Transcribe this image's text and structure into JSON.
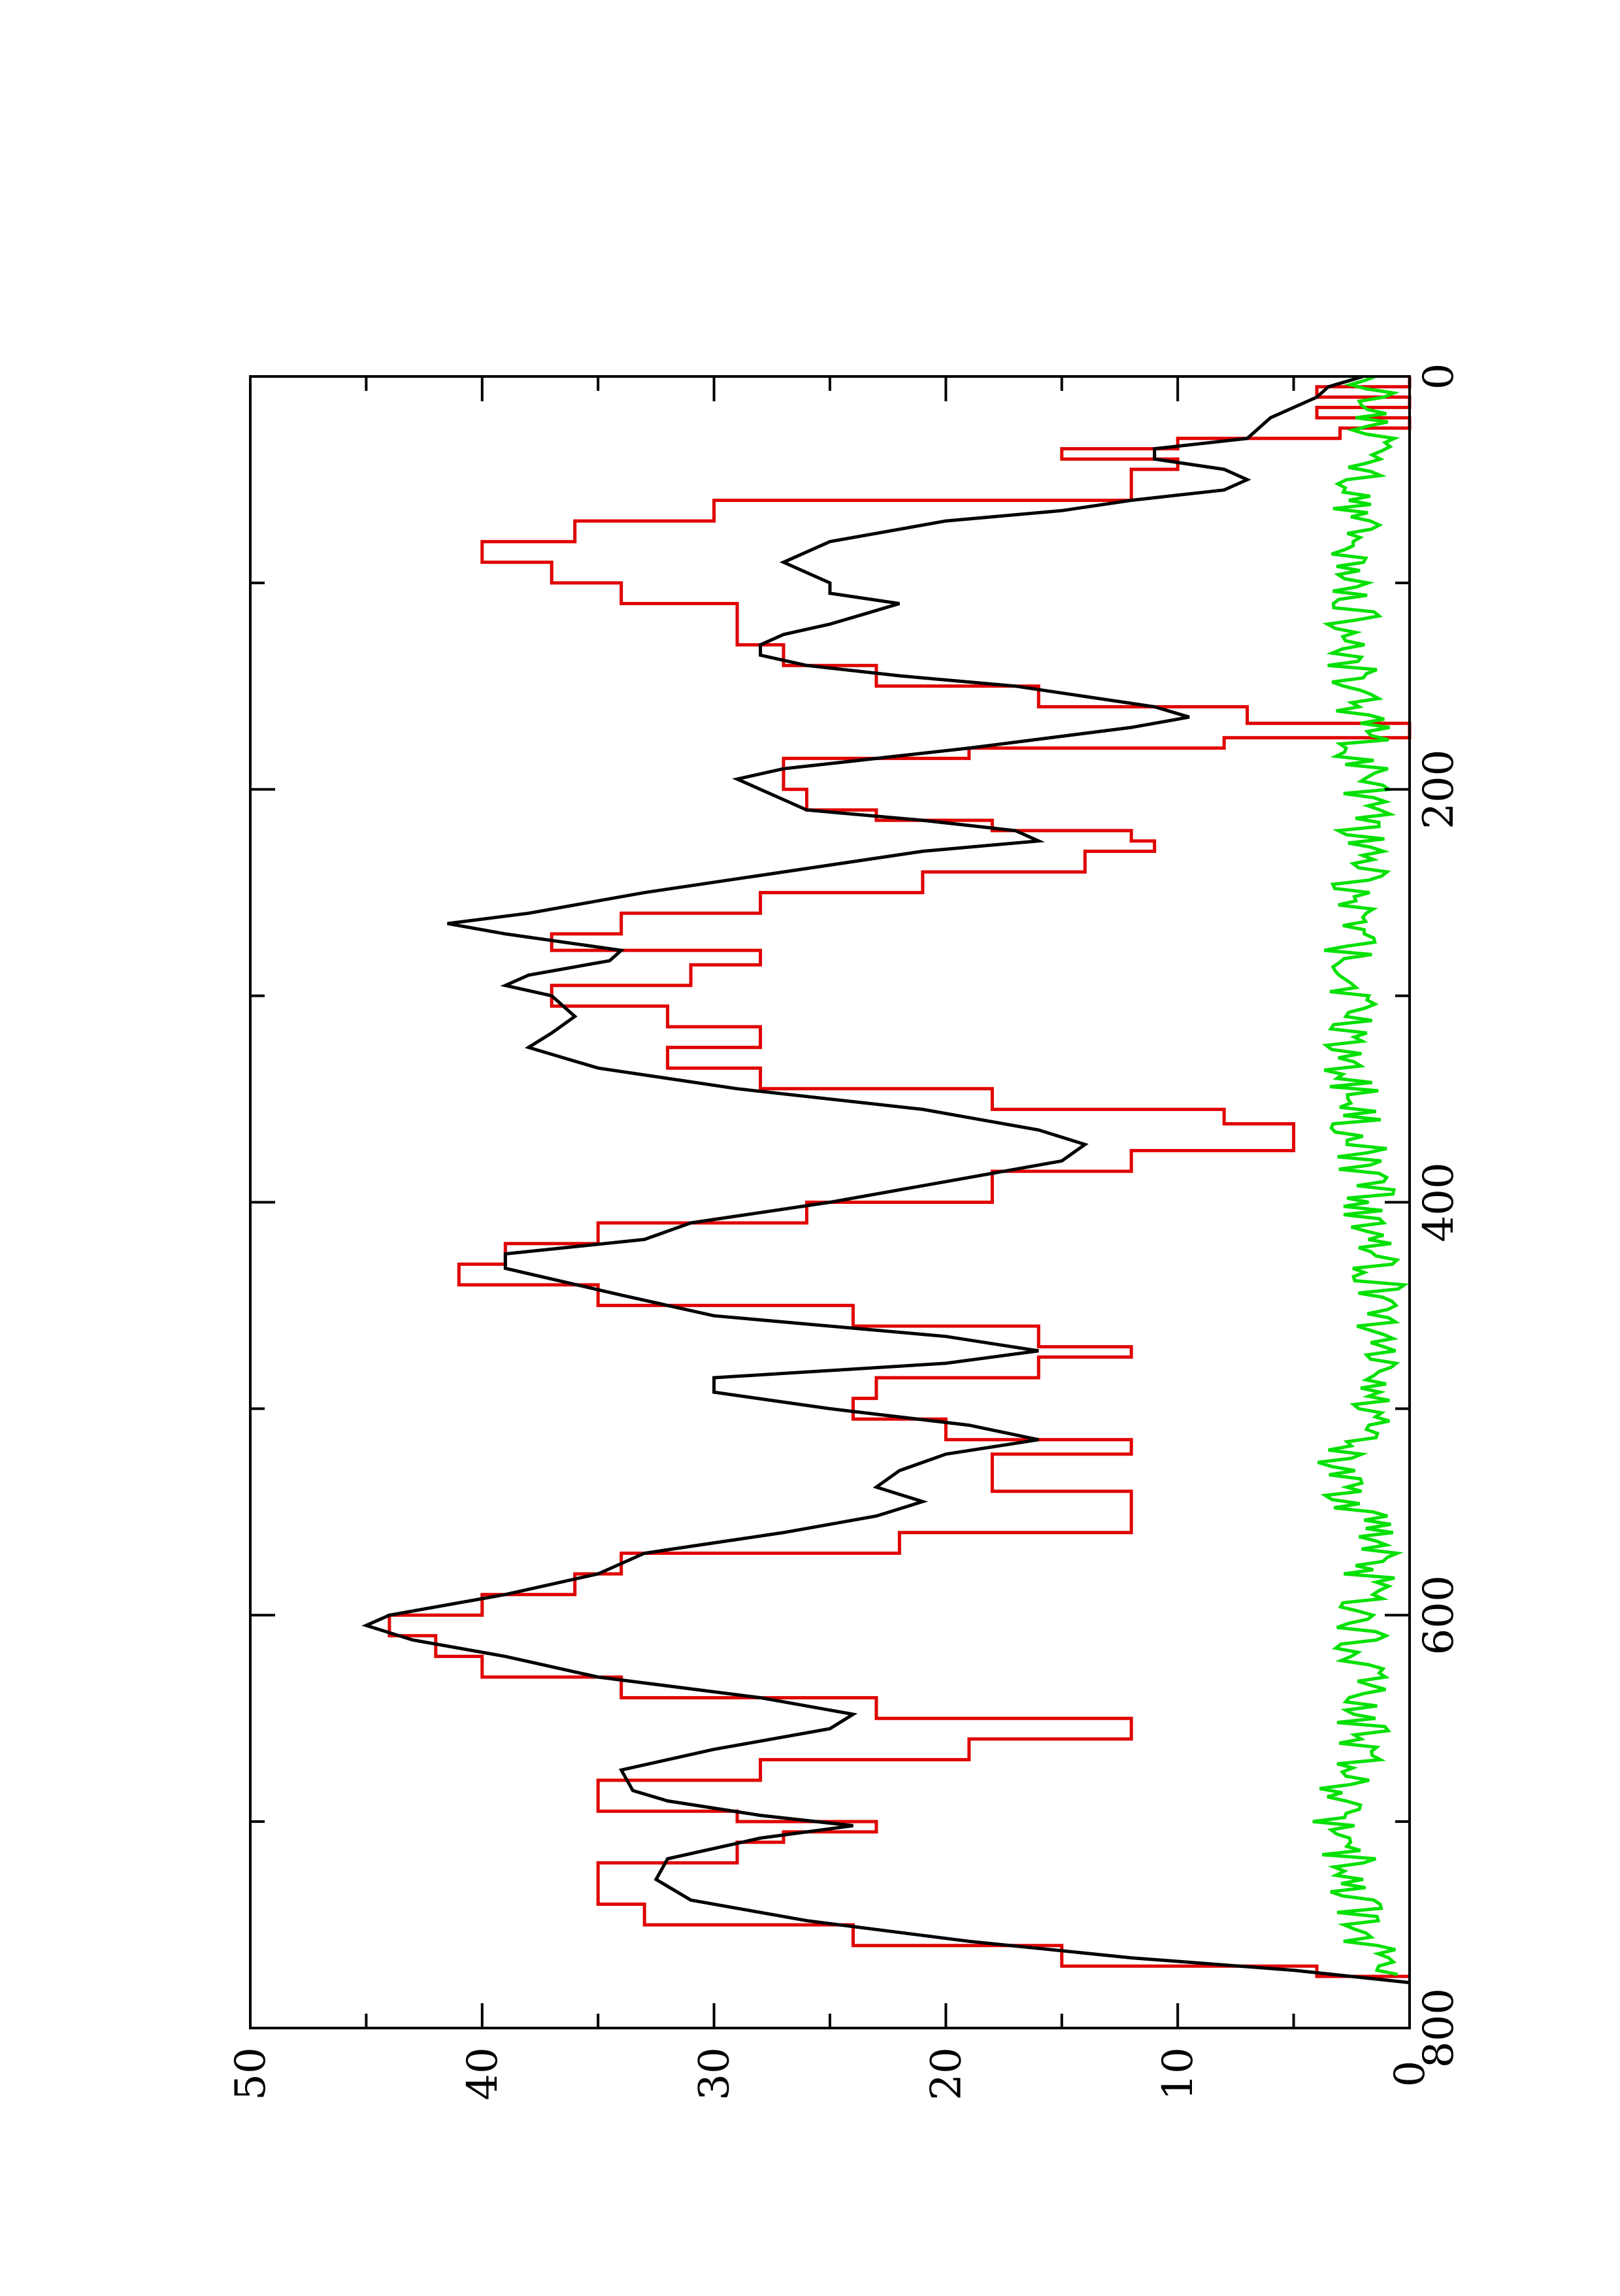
{
  "chart_data": {
    "type": "line",
    "orientation": "rotated-90",
    "title": "",
    "xlabel": "",
    "ylabel": "",
    "xlim": [
      0,
      800
    ],
    "ylim": [
      0,
      50
    ],
    "x_ticks": [
      0,
      200,
      400,
      600,
      800
    ],
    "x_tick_labels": [
      "0",
      "200",
      "400",
      "600",
      "800"
    ],
    "x_minor_ticks": [
      100,
      300,
      500,
      700
    ],
    "y_ticks": [
      0,
      10,
      20,
      30,
      40,
      50
    ],
    "y_tick_labels": [
      "0",
      "10",
      "20",
      "30",
      "40",
      "50"
    ],
    "y_minor_ticks": [
      5,
      15,
      25,
      35,
      45
    ],
    "grid": false,
    "legend": "none",
    "series": [
      {
        "color": "#e00000",
        "style": "step",
        "points": [
          [
            0,
            0
          ],
          [
            5,
            4
          ],
          [
            10,
            0
          ],
          [
            15,
            4
          ],
          [
            20,
            0
          ],
          [
            25,
            3
          ],
          [
            30,
            10
          ],
          [
            35,
            15
          ],
          [
            40,
            10
          ],
          [
            45,
            12
          ],
          [
            60,
            30
          ],
          [
            70,
            36
          ],
          [
            80,
            40
          ],
          [
            90,
            37
          ],
          [
            100,
            34
          ],
          [
            110,
            29
          ],
          [
            120,
            29
          ],
          [
            130,
            27
          ],
          [
            140,
            23
          ],
          [
            150,
            16
          ],
          [
            160,
            7
          ],
          [
            168,
            0
          ],
          [
            175,
            8
          ],
          [
            180,
            19
          ],
          [
            185,
            27
          ],
          [
            195,
            27
          ],
          [
            200,
            26
          ],
          [
            210,
            23
          ],
          [
            215,
            18
          ],
          [
            220,
            12
          ],
          [
            225,
            11
          ],
          [
            230,
            14
          ],
          [
            240,
            21
          ],
          [
            250,
            28
          ],
          [
            260,
            34
          ],
          [
            270,
            37
          ],
          [
            278,
            28
          ],
          [
            285,
            31
          ],
          [
            295,
            37
          ],
          [
            305,
            32
          ],
          [
            315,
            28
          ],
          [
            325,
            32
          ],
          [
            335,
            28
          ],
          [
            345,
            18
          ],
          [
            355,
            8
          ],
          [
            362,
            5
          ],
          [
            372,
            5
          ],
          [
            375,
            12
          ],
          [
            385,
            18
          ],
          [
            400,
            26
          ],
          [
            410,
            35
          ],
          [
            420,
            39
          ],
          [
            430,
            41
          ],
          [
            440,
            35
          ],
          [
            450,
            24
          ],
          [
            460,
            16
          ],
          [
            470,
            12
          ],
          [
            475,
            16
          ],
          [
            485,
            23
          ],
          [
            495,
            24
          ],
          [
            505,
            20
          ],
          [
            515,
            12
          ],
          [
            522,
            18
          ],
          [
            532,
            18
          ],
          [
            540,
            12
          ],
          [
            550,
            12
          ],
          [
            560,
            22
          ],
          [
            570,
            34
          ],
          [
            580,
            36
          ],
          [
            590,
            40
          ],
          [
            600,
            44
          ],
          [
            610,
            42
          ],
          [
            620,
            40
          ],
          [
            630,
            34
          ],
          [
            640,
            23
          ],
          [
            650,
            12
          ],
          [
            660,
            19
          ],
          [
            670,
            28
          ],
          [
            680,
            35
          ],
          [
            690,
            35
          ],
          [
            695,
            29
          ],
          [
            700,
            23
          ],
          [
            705,
            27
          ],
          [
            710,
            29
          ],
          [
            720,
            35
          ],
          [
            730,
            35
          ],
          [
            740,
            33
          ],
          [
            750,
            24
          ],
          [
            760,
            15
          ],
          [
            770,
            4
          ],
          [
            775,
            0
          ]
        ]
      },
      {
        "color": "#000000",
        "style": "line",
        "points": [
          [
            0,
            2
          ],
          [
            5,
            3.5
          ],
          [
            10,
            4
          ],
          [
            20,
            6
          ],
          [
            25,
            6.5
          ],
          [
            30,
            7
          ],
          [
            35,
            11
          ],
          [
            40,
            11
          ],
          [
            45,
            8
          ],
          [
            50,
            7
          ],
          [
            55,
            8
          ],
          [
            60,
            12
          ],
          [
            65,
            15
          ],
          [
            70,
            20
          ],
          [
            80,
            25
          ],
          [
            90,
            27
          ],
          [
            100,
            25
          ],
          [
            105,
            25
          ],
          [
            110,
            22
          ],
          [
            115,
            23.5
          ],
          [
            120,
            25
          ],
          [
            125,
            27
          ],
          [
            130,
            28
          ],
          [
            135,
            28
          ],
          [
            140,
            26
          ],
          [
            145,
            22
          ],
          [
            150,
            17
          ],
          [
            155,
            14
          ],
          [
            160,
            11
          ],
          [
            165,
            9.5
          ],
          [
            170,
            12
          ],
          [
            180,
            19
          ],
          [
            190,
            27
          ],
          [
            195,
            29
          ],
          [
            200,
            28
          ],
          [
            205,
            27
          ],
          [
            210,
            26
          ],
          [
            215,
            21
          ],
          [
            220,
            17
          ],
          [
            225,
            16
          ],
          [
            230,
            21
          ],
          [
            240,
            27
          ],
          [
            250,
            33
          ],
          [
            260,
            38
          ],
          [
            265,
            41.5
          ],
          [
            270,
            39
          ],
          [
            278,
            34
          ],
          [
            283,
            34.5
          ],
          [
            290,
            38
          ],
          [
            295,
            39
          ],
          [
            300,
            37
          ],
          [
            310,
            36
          ],
          [
            318,
            37
          ],
          [
            325,
            38
          ],
          [
            335,
            35
          ],
          [
            345,
            29
          ],
          [
            355,
            21
          ],
          [
            365,
            16
          ],
          [
            372,
            14
          ],
          [
            380,
            15
          ],
          [
            390,
            20
          ],
          [
            400,
            25
          ],
          [
            410,
            31
          ],
          [
            418,
            33
          ],
          [
            425,
            39
          ],
          [
            432,
            39
          ],
          [
            445,
            34
          ],
          [
            455,
            30
          ],
          [
            465,
            20
          ],
          [
            472,
            16
          ],
          [
            478,
            20
          ],
          [
            485,
            30
          ],
          [
            492,
            30
          ],
          [
            500,
            25
          ],
          [
            508,
            19
          ],
          [
            515,
            16
          ],
          [
            522,
            20
          ],
          [
            530,
            22
          ],
          [
            538,
            23
          ],
          [
            545,
            21
          ],
          [
            552,
            23
          ],
          [
            560,
            27
          ],
          [
            570,
            33
          ],
          [
            580,
            35
          ],
          [
            590,
            39
          ],
          [
            600,
            44
          ],
          [
            605,
            45
          ],
          [
            612,
            43
          ],
          [
            620,
            39
          ],
          [
            630,
            35
          ],
          [
            640,
            28
          ],
          [
            648,
            24
          ],
          [
            655,
            25
          ],
          [
            665,
            30
          ],
          [
            675,
            34
          ],
          [
            685,
            33.5
          ],
          [
            690,
            32
          ],
          [
            697,
            28
          ],
          [
            702,
            24
          ],
          [
            708,
            28
          ],
          [
            718,
            32
          ],
          [
            728,
            32.5
          ],
          [
            738,
            31
          ],
          [
            748,
            26
          ],
          [
            758,
            19
          ],
          [
            766,
            12
          ],
          [
            772,
            5
          ],
          [
            778,
            0
          ]
        ]
      },
      {
        "color": "#00e000",
        "style": "line",
        "noise": true,
        "x_range": [
          0,
          775
        ],
        "baseline": 2,
        "amplitude": 1.5,
        "points": [
          [
            0,
            1.5
          ],
          [
            30,
            1.5
          ],
          [
            80,
            2.5
          ],
          [
            130,
            2.5
          ],
          [
            170,
            2
          ],
          [
            220,
            2
          ],
          [
            280,
            2.5
          ],
          [
            350,
            2.5
          ],
          [
            420,
            1.5
          ],
          [
            470,
            1
          ],
          [
            510,
            1.5
          ],
          [
            530,
            3.5
          ],
          [
            560,
            1.5
          ],
          [
            600,
            2
          ],
          [
            650,
            2
          ],
          [
            700,
            3
          ],
          [
            750,
            2
          ],
          [
            775,
            1.5
          ]
        ]
      }
    ]
  }
}
